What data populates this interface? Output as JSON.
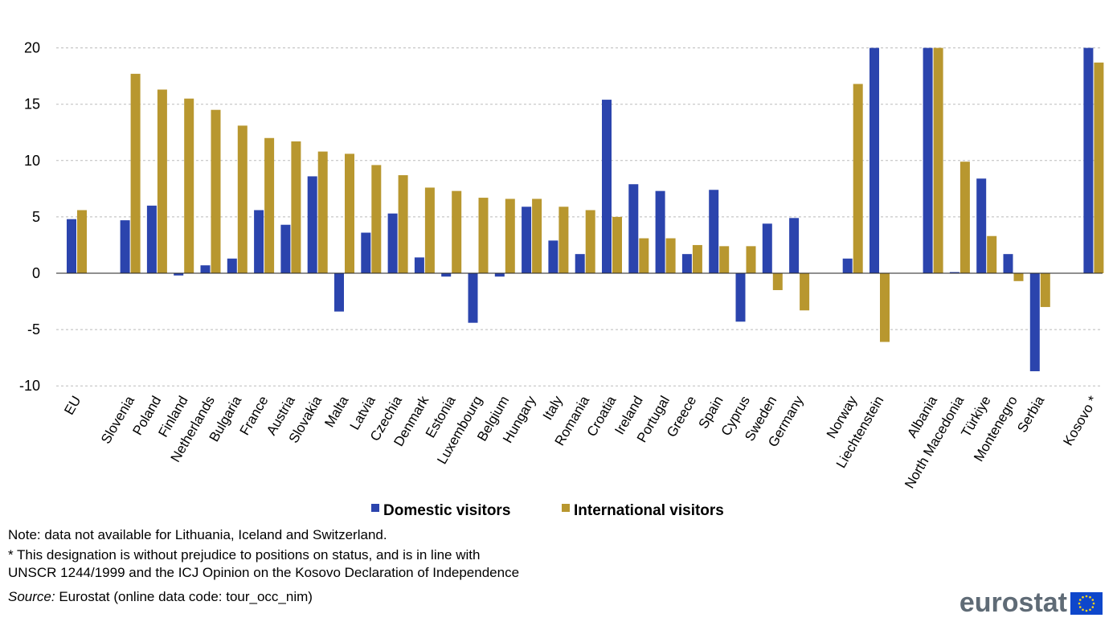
{
  "chart_data": {
    "type": "bar",
    "title": "",
    "xlabel": "",
    "ylabel": "",
    "ylim": [
      -10,
      20
    ],
    "yticks": [
      -10,
      -5,
      0,
      5,
      10,
      15,
      20
    ],
    "grid": true,
    "legend_position": "bottom",
    "categories": [
      "EU",
      "",
      "Slovenia",
      "Poland",
      "Finland",
      "Netherlands",
      "Bulgaria",
      "France",
      "Austria",
      "Slovakia",
      "Malta",
      "Latvia",
      "Czechia",
      "Denmark",
      "Estonia",
      "Luxembourg",
      "Belgium",
      "Hungary",
      "Italy",
      "Romania",
      "Croatia",
      "Ireland",
      "Portugal",
      "Greece",
      "Spain",
      "Cyprus",
      "Sweden",
      "Germany",
      "",
      "Norway",
      "Liechtenstein",
      "",
      "Albania",
      "North Macedonia",
      "Türkiye",
      "Montenegro",
      "Serbia",
      "",
      "Kosovo *"
    ],
    "series": [
      {
        "name": "Domestic visitors",
        "color": "#2b44ad",
        "values": [
          4.8,
          null,
          4.7,
          6.0,
          -0.2,
          0.7,
          1.3,
          5.6,
          4.3,
          8.6,
          -3.4,
          3.6,
          5.3,
          1.4,
          -0.3,
          -4.4,
          -0.3,
          5.9,
          2.9,
          1.7,
          15.4,
          7.9,
          7.3,
          1.7,
          7.4,
          -4.3,
          4.4,
          4.9,
          null,
          1.3,
          20,
          null,
          20,
          0.1,
          8.4,
          1.7,
          -8.7,
          null,
          20
        ]
      },
      {
        "name": "International visitors",
        "color": "#b8972f",
        "values": [
          5.6,
          null,
          17.7,
          16.3,
          15.5,
          14.5,
          13.1,
          12.0,
          11.7,
          10.8,
          10.6,
          9.6,
          8.7,
          7.6,
          7.3,
          6.7,
          6.6,
          6.6,
          5.9,
          5.6,
          5.0,
          3.1,
          3.1,
          2.5,
          2.4,
          2.4,
          -1.5,
          -3.3,
          null,
          16.8,
          -6.1,
          null,
          20,
          9.9,
          3.3,
          -0.7,
          -3.0,
          null,
          18.7
        ]
      }
    ]
  },
  "notes": {
    "line1": "Note: data not available for Lithuania, Iceland and Switzerland.",
    "line2": "* This designation is without prejudice to positions on status, and is in line with",
    "line3": "UNSCR 1244/1999 and the ICJ Opinion on the Kosovo Declaration of Independence",
    "source_label": "Source:",
    "source_text": " Eurostat (online data code: tour_occ_nim)"
  },
  "logo": {
    "text": "eurostat"
  }
}
